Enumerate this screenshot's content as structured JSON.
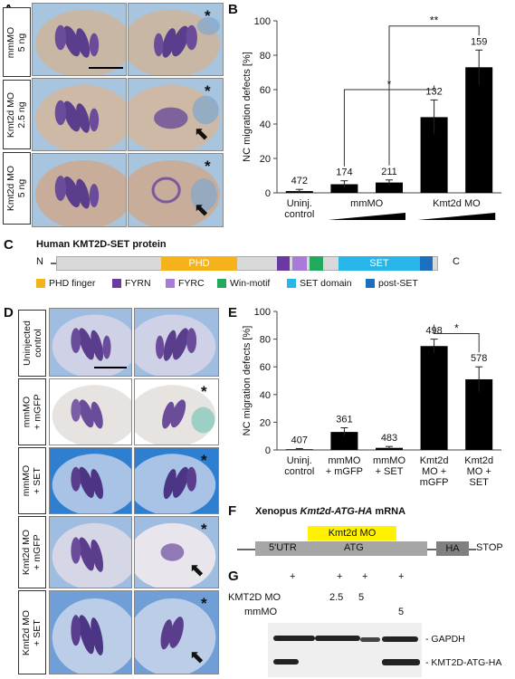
{
  "panels": {
    "A": "A",
    "B": "B",
    "C": "C",
    "D": "D",
    "E": "E",
    "F": "F",
    "G": "G"
  },
  "panelA": {
    "rows": [
      {
        "label": "mmMO\n5 ng",
        "right_star": "*",
        "arrow": false
      },
      {
        "label": "Kmt2d MO\n2.5 ng",
        "right_star": "*",
        "arrow": true
      },
      {
        "label": "Kmt2d MO\n5 ng",
        "right_star": "*",
        "arrow": true
      }
    ]
  },
  "panelD": {
    "rows": [
      {
        "label": "Uninjected\ncontrol",
        "right_star": "",
        "arrow": false
      },
      {
        "label": "mmMO\n+ mGFP",
        "right_star": "*",
        "arrow": false
      },
      {
        "label": "mmMO\n+ SET",
        "right_star": "*",
        "arrow": false
      },
      {
        "label": "Kmt2d MO\n+ mGFP",
        "right_star": "*",
        "arrow": true
      },
      {
        "label": "Kmt2d MO\n+ SET",
        "right_star": "*",
        "arrow": true
      }
    ]
  },
  "colors": {
    "bar": "#000000",
    "photo_bg": "#a9c4dd",
    "stain": "#5a3d8c"
  },
  "chart_data": [
    {
      "id": "B",
      "type": "bar",
      "ylabel": "NC migration defects [%]",
      "ylim": [
        0,
        100
      ],
      "yticks": [
        0,
        20,
        40,
        60,
        80,
        100
      ],
      "categories": [
        "Uninj. control",
        "mmMO low",
        "mmMO high",
        "Kmt2d MO low",
        "Kmt2d MO high"
      ],
      "tick_labels": [
        "Uninj.\ncontrol",
        "",
        "",
        " ",
        ""
      ],
      "group_labels": [
        {
          "text": "mmMO",
          "from": 1,
          "to": 2
        },
        {
          "text": "Kmt2d MO",
          "from": 3,
          "to": 4
        }
      ],
      "values": [
        1,
        5,
        6,
        44,
        73
      ],
      "errors": [
        1,
        2,
        1.5,
        10,
        10
      ],
      "n_labels": [
        "472",
        "174",
        "211",
        "132",
        "159"
      ],
      "significance": [
        {
          "from": 1,
          "to": 3,
          "label": "*"
        },
        {
          "from": 2,
          "to": 4,
          "label": "**"
        }
      ]
    },
    {
      "id": "E",
      "type": "bar",
      "ylabel": "NC migration defects [%]",
      "ylim": [
        0,
        100
      ],
      "yticks": [
        0,
        20,
        40,
        60,
        80,
        100
      ],
      "categories": [
        "Uninj.\ncontrol",
        "mmMO\n+ mGFP",
        "mmMO\n+ SET",
        "Kmt2d\nMO +\nmGFP",
        "Kmt2d\nMO +\nSET"
      ],
      "values": [
        0.5,
        13,
        1.5,
        75,
        51
      ],
      "errors": [
        0.5,
        3,
        1,
        5,
        9
      ],
      "n_labels": [
        "407",
        "361",
        "483",
        "498",
        "578"
      ],
      "significance": [
        {
          "from": 3,
          "to": 4,
          "label": "*"
        }
      ]
    }
  ],
  "panelC": {
    "title": "Human KMT2D-SET protein",
    "n_term": "N",
    "c_term": "C",
    "domains": [
      {
        "name": "PHD",
        "color": "#f5b21b"
      },
      {
        "name": "",
        "color": "#6b3aa0"
      },
      {
        "name": "",
        "color": "#a77bd6"
      },
      {
        "name": "",
        "color": "#22a95b"
      },
      {
        "name": "SET",
        "color": "#28b6ea"
      },
      {
        "name": "",
        "color": "#1a6fbf"
      }
    ],
    "legend": [
      {
        "label": "PHD finger",
        "color": "#f5b21b"
      },
      {
        "label": "FYRN",
        "color": "#6b3aa0"
      },
      {
        "label": "FYRC",
        "color": "#a77bd6"
      },
      {
        "label": "Win-motif",
        "color": "#22a95b"
      },
      {
        "label": "SET domain",
        "color": "#28b6ea"
      },
      {
        "label": "post-SET",
        "color": "#1a6fbf"
      }
    ]
  },
  "panelF": {
    "title_plain": "Xenopus ",
    "title_italic": "Kmt2d-ATG-HA",
    "title_end": " mRNA",
    "mo_box": "Kmt2d MO",
    "utr": "5'UTR",
    "atg": "ATG",
    "ha": "HA",
    "stop": "STOP"
  },
  "panelG": {
    "plus_row": [
      "+",
      "+",
      "+",
      "+"
    ],
    "kmt2d_label": "KMT2D MO",
    "kmt2d_values": [
      "",
      "2.5",
      "5",
      ""
    ],
    "mmmo_label": "mmMO",
    "mmmo_values": [
      "",
      "",
      "",
      "5"
    ],
    "band1": "- GAPDH",
    "band2": "- KMT2D-ATG-HA"
  }
}
